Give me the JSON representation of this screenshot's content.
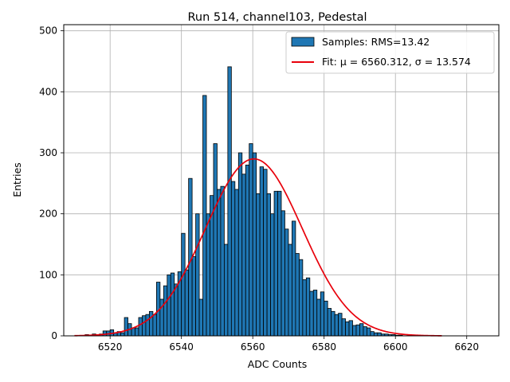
{
  "chart_data": {
    "type": "bar",
    "title": "Run 514, channel103, Pedestal",
    "xlabel": "ADC Counts",
    "ylabel": "Entries",
    "xlim": [
      6507,
      6629
    ],
    "ylim": [
      0,
      510
    ],
    "x_ticks": [
      6520,
      6540,
      6560,
      6580,
      6600,
      6620
    ],
    "y_ticks": [
      0,
      100,
      200,
      300,
      400,
      500
    ],
    "grid": true,
    "legend_position": "top-right",
    "bin_width": 1,
    "bins_start": 6513,
    "hist_color": "#1f77b4",
    "fit_color": "#e8000b",
    "series": [
      {
        "name": "Samples: RMS=13.42",
        "values": [
          2,
          0,
          3,
          2,
          3,
          8,
          8,
          10,
          5,
          7,
          5,
          30,
          20,
          13,
          13,
          30,
          33,
          35,
          40,
          35,
          88,
          60,
          82,
          100,
          103,
          85,
          105,
          168,
          108,
          258,
          130,
          200,
          60,
          394,
          200,
          230,
          315,
          240,
          245,
          150,
          441,
          253,
          240,
          300,
          265,
          280,
          315,
          300,
          233,
          277,
          273,
          233,
          200,
          237,
          237,
          205,
          175,
          150,
          188,
          135,
          125,
          92,
          95,
          73,
          75,
          60,
          72,
          57,
          45,
          40,
          35,
          37,
          28,
          23,
          25,
          17,
          18,
          20,
          15,
          13,
          7,
          5,
          5,
          3,
          3,
          2,
          2,
          1,
          1,
          0
        ]
      }
    ],
    "fit": {
      "name": "Fit: μ = 6560.312, σ = 13.574",
      "mu": 6560.312,
      "sigma": 13.574,
      "amplitude": 290,
      "x_range": [
        6510,
        6613
      ]
    }
  }
}
